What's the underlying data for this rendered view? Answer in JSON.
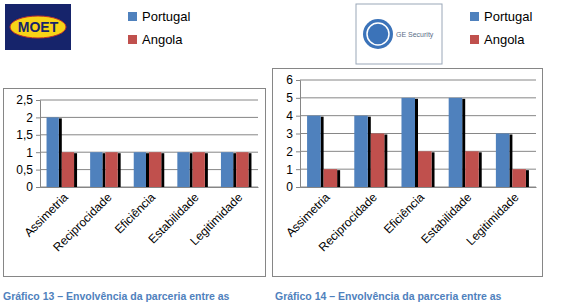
{
  "chart_data": [
    {
      "type": "bar",
      "title": "Gráfico 13  – Envolvência da parceria entre as",
      "annotations": [
        "MOET"
      ],
      "categories": [
        "Assimetria",
        "Reciprocidade",
        "Eficiência",
        "Estabilidade",
        "Legitimidade"
      ],
      "series": [
        {
          "name": "Portugal",
          "color": "#4f81bd",
          "values": [
            2,
            1,
            1,
            1,
            1
          ]
        },
        {
          "name": "Angola",
          "color": "#c0504d",
          "values": [
            1,
            1,
            1,
            1,
            1
          ]
        }
      ],
      "ylim": [
        0,
        2.5
      ],
      "yticks": [
        0,
        {
          "value": 0.5,
          "label": "0,5"
        },
        1,
        {
          "value": 1.5,
          "label": "1,5"
        },
        2,
        {
          "value": 2.5,
          "label": "2,5"
        }
      ],
      "grid": true,
      "legend": "top"
    },
    {
      "type": "bar",
      "title": "Gráfico 14  – Envolvência da parceria entre as",
      "annotations": [
        "GE Security"
      ],
      "categories": [
        "Assimetria",
        "Reciprocidade",
        "Eficiência",
        "Estabilidade",
        "Legitimidade"
      ],
      "series": [
        {
          "name": "Portugal",
          "color": "#4f81bd",
          "values": [
            4,
            4,
            5,
            5,
            3
          ]
        },
        {
          "name": "Angola",
          "color": "#c0504d",
          "values": [
            1,
            3,
            2,
            2,
            1
          ]
        }
      ],
      "ylim": [
        0,
        6
      ],
      "yticks": [
        0,
        1,
        2,
        3,
        4,
        5,
        6
      ],
      "grid": true,
      "legend": "top"
    }
  ]
}
